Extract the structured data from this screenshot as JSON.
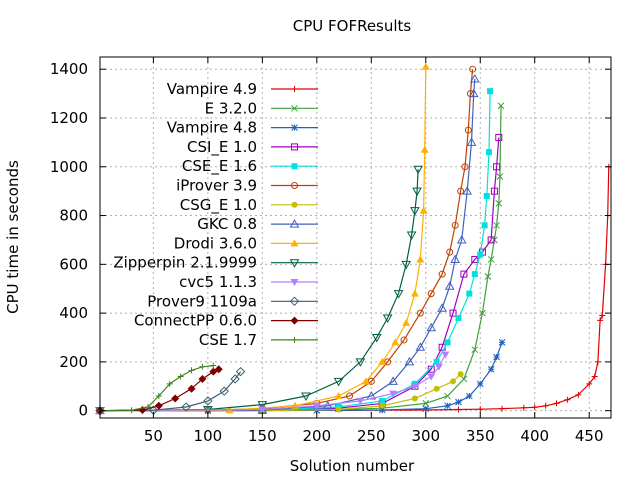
{
  "chart_data": {
    "type": "line",
    "title": "CPU FOFResults",
    "xlabel": "Solution number",
    "ylabel": "CPU time in seconds",
    "xlim": [
      1,
      470
    ],
    "ylim": [
      -30,
      1450
    ],
    "xticks": [
      50,
      100,
      150,
      200,
      250,
      300,
      350,
      400,
      450
    ],
    "yticks": [
      0,
      200,
      400,
      600,
      800,
      1000,
      1200,
      1400
    ],
    "grid": true,
    "legend_position": "top-left",
    "series": [
      {
        "name": "Vampire 4.9",
        "color": "#e00000",
        "marker": "plus",
        "points": [
          [
            1,
            0
          ],
          [
            100,
            0
          ],
          [
            200,
            1
          ],
          [
            260,
            2
          ],
          [
            300,
            3
          ],
          [
            330,
            5
          ],
          [
            350,
            6
          ],
          [
            370,
            8
          ],
          [
            390,
            12
          ],
          [
            400,
            14
          ],
          [
            410,
            20
          ],
          [
            420,
            30
          ],
          [
            430,
            45
          ],
          [
            440,
            65
          ],
          [
            450,
            110
          ],
          [
            455,
            140
          ],
          [
            458,
            200
          ],
          [
            460,
            370
          ],
          [
            462,
            390
          ],
          [
            465,
            600
          ],
          [
            467,
            800
          ],
          [
            468,
            1000
          ]
        ]
      },
      {
        "name": "E 3.2.0",
        "color": "#40a040",
        "marker": "cross",
        "points": [
          [
            1,
            0
          ],
          [
            100,
            0
          ],
          [
            200,
            2
          ],
          [
            260,
            10
          ],
          [
            300,
            30
          ],
          [
            320,
            60
          ],
          [
            335,
            130
          ],
          [
            345,
            250
          ],
          [
            352,
            400
          ],
          [
            357,
            550
          ],
          [
            360,
            620
          ],
          [
            363,
            700
          ],
          [
            365,
            760
          ],
          [
            367,
            850
          ],
          [
            368,
            960
          ],
          [
            369,
            1250
          ]
        ]
      },
      {
        "name": "Vampire 4.8",
        "color": "#2060c0",
        "marker": "star",
        "points": [
          [
            1,
            0
          ],
          [
            100,
            0
          ],
          [
            200,
            1
          ],
          [
            260,
            3
          ],
          [
            300,
            8
          ],
          [
            320,
            20
          ],
          [
            330,
            35
          ],
          [
            340,
            60
          ],
          [
            350,
            110
          ],
          [
            360,
            170
          ],
          [
            365,
            220
          ],
          [
            370,
            280
          ]
        ]
      },
      {
        "name": "CSI_E 1.0",
        "color": "#a000c0",
        "marker": "square",
        "points": [
          [
            1,
            0
          ],
          [
            150,
            1
          ],
          [
            220,
            10
          ],
          [
            260,
            30
          ],
          [
            290,
            100
          ],
          [
            305,
            170
          ],
          [
            315,
            260
          ],
          [
            325,
            400
          ],
          [
            335,
            560
          ],
          [
            345,
            620
          ],
          [
            352,
            650
          ],
          [
            360,
            700
          ],
          [
            363,
            900
          ],
          [
            365,
            1000
          ],
          [
            367,
            1120
          ]
        ]
      },
      {
        "name": "CSE_E 1.6",
        "color": "#00e0e0",
        "marker": "square-filled",
        "points": [
          [
            1,
            0
          ],
          [
            150,
            2
          ],
          [
            220,
            15
          ],
          [
            260,
            40
          ],
          [
            290,
            110
          ],
          [
            310,
            200
          ],
          [
            320,
            280
          ],
          [
            330,
            380
          ],
          [
            340,
            480
          ],
          [
            345,
            560
          ],
          [
            350,
            640
          ],
          [
            354,
            760
          ],
          [
            356,
            880
          ],
          [
            358,
            1060
          ],
          [
            359,
            1310
          ]
        ]
      },
      {
        "name": "iProver 3.9",
        "color": "#c04000",
        "marker": "circle",
        "points": [
          [
            1,
            0
          ],
          [
            100,
            2
          ],
          [
            150,
            8
          ],
          [
            200,
            30
          ],
          [
            230,
            60
          ],
          [
            250,
            120
          ],
          [
            265,
            200
          ],
          [
            280,
            290
          ],
          [
            295,
            400
          ],
          [
            305,
            480
          ],
          [
            315,
            560
          ],
          [
            322,
            650
          ],
          [
            327,
            760
          ],
          [
            332,
            900
          ],
          [
            336,
            1000
          ],
          [
            339,
            1150
          ],
          [
            341,
            1300
          ],
          [
            343,
            1400
          ]
        ]
      },
      {
        "name": "CSG_E 1.0",
        "color": "#c0c000",
        "marker": "circle-filled",
        "points": [
          [
            1,
            0
          ],
          [
            150,
            0
          ],
          [
            220,
            5
          ],
          [
            260,
            20
          ],
          [
            290,
            50
          ],
          [
            310,
            90
          ],
          [
            325,
            120
          ],
          [
            332,
            150
          ]
        ]
      },
      {
        "name": "GKC 0.8",
        "color": "#4060c0",
        "marker": "triangle",
        "points": [
          [
            1,
            0
          ],
          [
            150,
            2
          ],
          [
            210,
            20
          ],
          [
            250,
            60
          ],
          [
            270,
            120
          ],
          [
            285,
            200
          ],
          [
            295,
            260
          ],
          [
            305,
            340
          ],
          [
            315,
            420
          ],
          [
            322,
            510
          ],
          [
            327,
            620
          ],
          [
            333,
            700
          ],
          [
            338,
            900
          ],
          [
            342,
            1100
          ],
          [
            344,
            1300
          ],
          [
            345,
            1360
          ]
        ]
      },
      {
        "name": "Drodi 3.6.0",
        "color": "#ffb000",
        "marker": "triangle-filled",
        "points": [
          [
            1,
            0
          ],
          [
            120,
            2
          ],
          [
            180,
            20
          ],
          [
            220,
            60
          ],
          [
            245,
            120
          ],
          [
            260,
            200
          ],
          [
            272,
            280
          ],
          [
            282,
            360
          ],
          [
            290,
            480
          ],
          [
            295,
            620
          ],
          [
            298,
            820
          ],
          [
            299,
            1070
          ],
          [
            300,
            1410
          ]
        ]
      },
      {
        "name": "Zipperpin 2.1.9999",
        "color": "#006040",
        "marker": "triangle-down",
        "points": [
          [
            1,
            0
          ],
          [
            100,
            5
          ],
          [
            150,
            25
          ],
          [
            190,
            60
          ],
          [
            220,
            120
          ],
          [
            240,
            200
          ],
          [
            255,
            300
          ],
          [
            265,
            380
          ],
          [
            275,
            480
          ],
          [
            282,
            600
          ],
          [
            287,
            720
          ],
          [
            290,
            820
          ],
          [
            292,
            900
          ],
          [
            293,
            990
          ]
        ]
      },
      {
        "name": "cvc5 1.1.3",
        "color": "#b080ff",
        "marker": "triangle-down-filled",
        "points": [
          [
            1,
            0
          ],
          [
            150,
            5
          ],
          [
            200,
            20
          ],
          [
            240,
            40
          ],
          [
            270,
            70
          ],
          [
            290,
            100
          ],
          [
            305,
            140
          ],
          [
            312,
            180
          ],
          [
            318,
            230
          ]
        ]
      },
      {
        "name": "Prover9 1109a",
        "color": "#3a6070",
        "marker": "diamond",
        "points": [
          [
            1,
            0
          ],
          [
            50,
            2
          ],
          [
            80,
            15
          ],
          [
            100,
            40
          ],
          [
            115,
            80
          ],
          [
            125,
            130
          ],
          [
            130,
            160
          ]
        ]
      },
      {
        "name": "ConnectPP 0.6.0",
        "color": "#800000",
        "marker": "diamond-filled",
        "points": [
          [
            1,
            0
          ],
          [
            40,
            3
          ],
          [
            55,
            20
          ],
          [
            70,
            50
          ],
          [
            85,
            90
          ],
          [
            95,
            130
          ],
          [
            105,
            160
          ],
          [
            110,
            170
          ]
        ]
      },
      {
        "name": "CSE 1.7",
        "color": "#408020",
        "marker": "plus",
        "points": [
          [
            1,
            0
          ],
          [
            30,
            2
          ],
          [
            45,
            15
          ],
          [
            55,
            60
          ],
          [
            65,
            110
          ],
          [
            75,
            140
          ],
          [
            85,
            165
          ],
          [
            95,
            180
          ],
          [
            105,
            185
          ]
        ]
      }
    ]
  }
}
